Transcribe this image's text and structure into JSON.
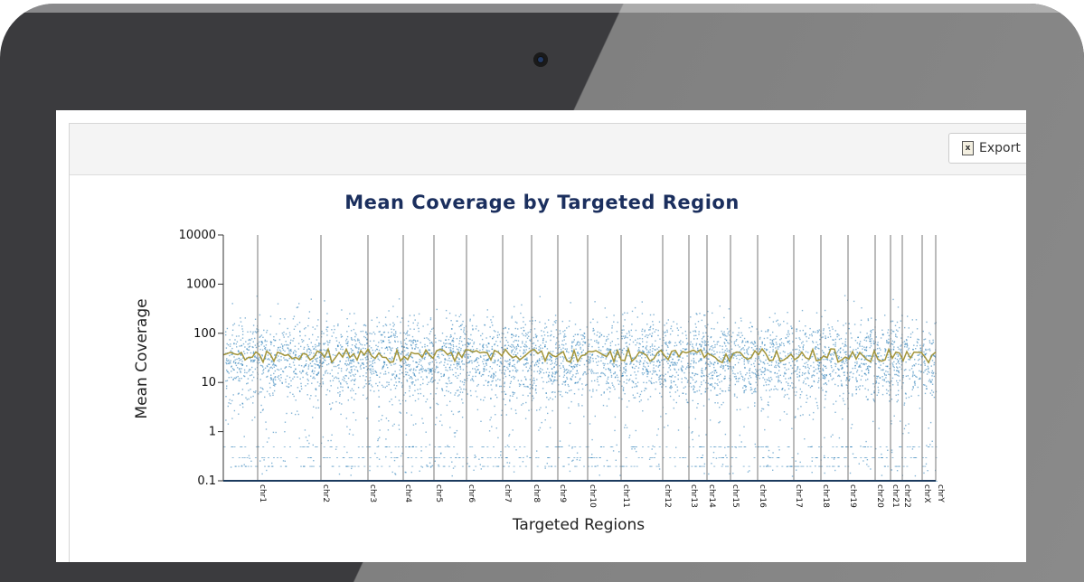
{
  "toolbar": {
    "export_label": "Export",
    "export_icon": "excel-file-icon"
  },
  "chart_data": {
    "type": "scatter",
    "title": "Mean Coverage by Targeted Region",
    "xlabel": "Targeted Regions",
    "ylabel": "Mean Coverage",
    "yscale": "log",
    "ylim": [
      0.1,
      10000
    ],
    "yticks": [
      "0.1",
      "1",
      "10",
      "100",
      "1000",
      "10000"
    ],
    "xticks": [
      "chr1",
      "chr2",
      "chr3",
      "chr4",
      "chr5",
      "chr6",
      "chr7",
      "chr8",
      "chr9",
      "chr10",
      "chr11",
      "chr12",
      "chr13",
      "chr14",
      "chr15",
      "chr16",
      "chr17",
      "chr18",
      "chr19",
      "chr20",
      "chr21",
      "chr22",
      "chrX",
      "chrY"
    ],
    "grid": "vertical lines at chromosome boundaries",
    "points_color": "#1f77b4",
    "trend_color": "#a3953a",
    "trend": {
      "name": "",
      "typical_range": [
        20,
        50
      ],
      "typical_value": 35
    },
    "scatter_typical_range": [
      5,
      200
    ]
  }
}
